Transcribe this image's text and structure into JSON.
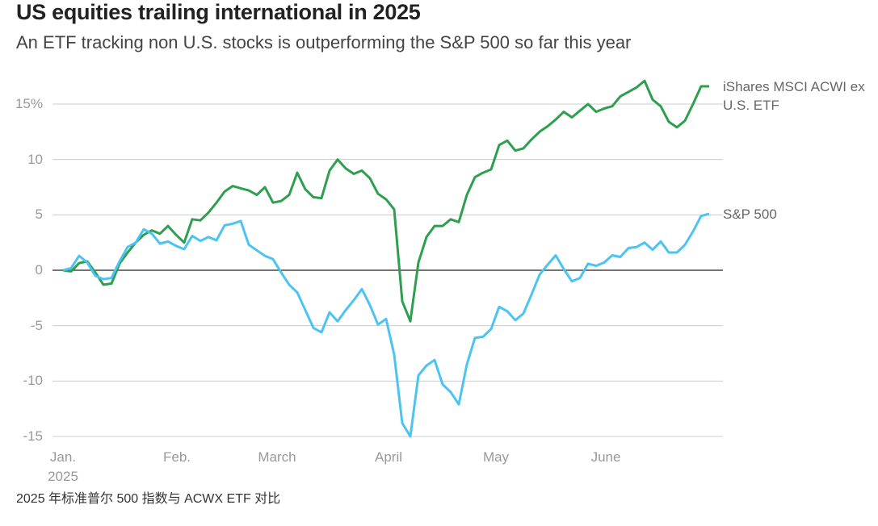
{
  "chart_data": {
    "type": "line",
    "title": "US equities trailing international in 2025",
    "subtitle": "An ETF tracking non U.S. stocks is outperforming the S&P 500 so far this year",
    "note": "2025 年标准普尔 500 指数与 ACWX ETF 对比",
    "xlim": [
      0,
      80
    ],
    "xticks": [
      {
        "value": 0,
        "label": "Jan. 2025"
      },
      {
        "value": 14.1,
        "label": "Feb."
      },
      {
        "value": 26.5,
        "label": "March"
      },
      {
        "value": 40.3,
        "label": "April"
      },
      {
        "value": 53.6,
        "label": "May"
      },
      {
        "value": 67.2,
        "label": "June"
      }
    ],
    "ylim": [
      -15,
      17.5
    ],
    "yticks": [
      {
        "value": 15,
        "label": "15%"
      },
      10,
      5,
      0,
      -5,
      -10,
      -15
    ],
    "grid": true,
    "series": [
      {
        "name": "iShares MSCI ACWI ex U.S. ETF",
        "color": "#2e9e4f",
        "values": [
          0,
          -0.1,
          0.65,
          0.8,
          -0.2,
          -1.3,
          -1.2,
          0.6,
          1.6,
          2.5,
          3.2,
          3.6,
          3.3,
          4.0,
          3.2,
          2.5,
          4.6,
          4.5,
          5.2,
          6.1,
          7.1,
          7.6,
          7.4,
          7.2,
          6.8,
          7.5,
          6.1,
          6.25,
          6.8,
          8.8,
          7.3,
          6.6,
          6.5,
          9.0,
          10.0,
          9.2,
          8.7,
          9.0,
          8.3,
          6.9,
          6.4,
          5.5,
          -2.8,
          -4.6,
          0.7,
          3.0,
          4.0,
          4.0,
          4.6,
          4.35,
          6.8,
          8.4,
          8.8,
          9.1,
          11.3,
          11.7,
          10.8,
          11.0,
          11.8,
          12.5,
          13.0,
          13.6,
          14.3,
          13.8,
          14.4,
          15.0,
          14.3,
          14.6,
          14.8,
          15.7,
          16.1,
          16.5,
          17.1,
          15.4,
          14.8,
          13.4,
          12.9,
          13.5,
          15.0,
          16.6,
          16.6
        ]
      },
      {
        "name": "S&P 500",
        "color": "#4cc3f0",
        "values": [
          0,
          0.2,
          1.3,
          0.7,
          -0.5,
          -0.8,
          -0.7,
          0.8,
          2.1,
          2.5,
          3.7,
          3.3,
          2.4,
          2.6,
          2.2,
          1.9,
          3.1,
          2.65,
          3.0,
          2.7,
          4.05,
          4.2,
          4.45,
          2.3,
          1.8,
          1.3,
          1.0,
          -0.2,
          -1.3,
          -2.0,
          -3.6,
          -5.2,
          -5.6,
          -3.8,
          -4.6,
          -3.6,
          -2.7,
          -1.7,
          -3.15,
          -4.9,
          -4.4,
          -7.6,
          -13.8,
          -15.0,
          -9.5,
          -8.6,
          -8.1,
          -10.3,
          -11.0,
          -12.1,
          -8.5,
          -6.1,
          -6.0,
          -5.3,
          -3.3,
          -3.7,
          -4.5,
          -3.9,
          -2.2,
          -0.4,
          0.5,
          1.35,
          0.1,
          -1.0,
          -0.7,
          0.6,
          0.4,
          0.7,
          1.35,
          1.2,
          2.0,
          2.1,
          2.5,
          1.85,
          2.6,
          1.6,
          1.6,
          2.3,
          3.5,
          4.9,
          5.1
        ]
      }
    ]
  }
}
